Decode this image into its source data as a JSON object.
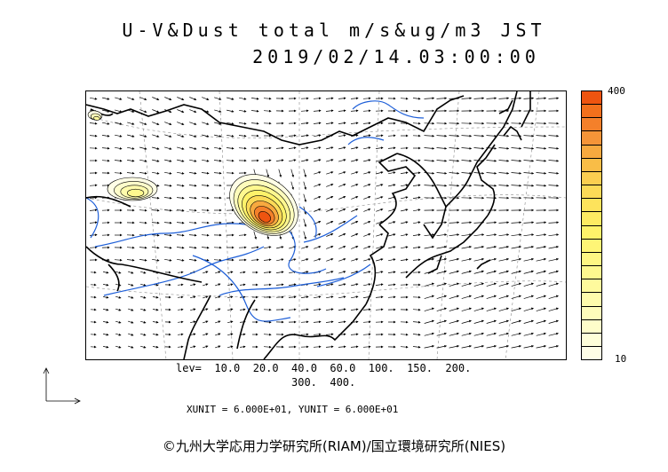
{
  "title": {
    "line1": "U-V&Dust total m/s&ug/m3 JST",
    "line2": "2019/02/14.03:00:00"
  },
  "colorbar": {
    "max_label": "400",
    "min_label": "10",
    "colors": [
      "#ee5410",
      "#f2701c",
      "#f4802a",
      "#f59438",
      "#f7a93f",
      "#f9bd47",
      "#fbce50",
      "#fcda57",
      "#fde35c",
      "#fdeb62",
      "#fef26a",
      "#fef576",
      "#fef683",
      "#fef88f",
      "#fefa9d",
      "#fefbac",
      "#fefcbb",
      "#fefdca",
      "#fefed8",
      "#fffee6"
    ]
  },
  "levels": {
    "line1": "lev=  10.0  20.0  40.0  60.0  100.  150.  200.",
    "line2": "300.  400."
  },
  "units": "XUNIT = 6.000E+01, YUNIT = 6.000E+01",
  "credit": "©九州大学応用力学研究所(RIAM)/国立環境研究所(NIES)",
  "map": {
    "dust_plumes": [
      {
        "name": "north-china-plume",
        "peak_level": "400"
      },
      {
        "name": "tarim-plume",
        "peak_level": "40.0"
      },
      {
        "name": "kazakh-plume",
        "peak_level": "20.0"
      }
    ],
    "colors": {
      "coast": "#000000",
      "river": "#1e5fd8",
      "grid": "#888888",
      "vector": "#000000"
    }
  }
}
